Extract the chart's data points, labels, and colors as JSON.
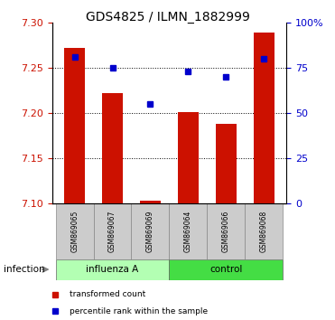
{
  "title": "GDS4825 / ILMN_1882999",
  "samples": [
    "GSM869065",
    "GSM869067",
    "GSM869069",
    "GSM869064",
    "GSM869066",
    "GSM869068"
  ],
  "transformed_counts": [
    7.272,
    7.222,
    7.103,
    7.201,
    7.188,
    7.289
  ],
  "percentile_ranks": [
    81,
    75,
    55,
    73,
    70,
    80
  ],
  "ylim_left": [
    7.1,
    7.3
  ],
  "ylim_right": [
    0,
    100
  ],
  "yticks_left": [
    7.1,
    7.15,
    7.2,
    7.25,
    7.3
  ],
  "yticks_right": [
    0,
    25,
    50,
    75,
    100
  ],
  "ytick_labels_right": [
    "0",
    "25",
    "50",
    "75",
    "100%"
  ],
  "bar_color": "#cc1100",
  "dot_color": "#0000cc",
  "groups": [
    {
      "label": "influenza A",
      "indices": [
        0,
        1,
        2
      ],
      "color": "#b3ffb3"
    },
    {
      "label": "control",
      "indices": [
        3,
        4,
        5
      ],
      "color": "#44dd44"
    }
  ],
  "infection_label": "infection",
  "legend_bar_label": "transformed count",
  "legend_dot_label": "percentile rank within the sample",
  "bar_bottom": 7.1,
  "bar_width": 0.55
}
